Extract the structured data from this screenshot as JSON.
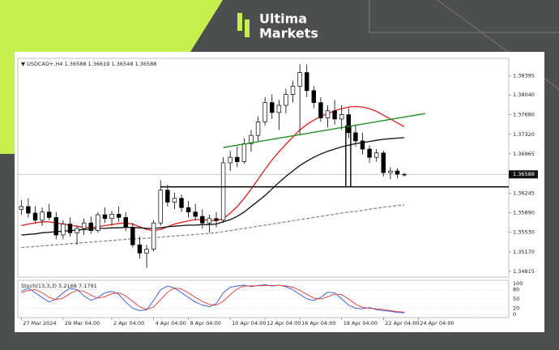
{
  "brand": {
    "line1": "Ultima",
    "line2": "Markets"
  },
  "chart_data": {
    "type": "candlestick",
    "symbol": "USDCAD+,H4",
    "header_ohlc": [
      1.36588,
      1.36619,
      1.36548,
      1.36588
    ],
    "open": [
      1.3595,
      1.36,
      1.3588,
      1.3575,
      1.359,
      1.358,
      1.3548,
      1.3568,
      1.3552,
      1.356,
      1.357,
      1.3556,
      1.3585,
      1.3578,
      1.3586,
      1.358,
      1.3562,
      1.353,
      1.3515,
      1.3522,
      1.357,
      1.363,
      1.3608,
      1.3615,
      1.3598,
      1.359,
      1.3582,
      1.357,
      1.3578,
      1.3575,
      1.368,
      1.369,
      1.3682,
      1.3715,
      1.373,
      1.3755,
      1.379,
      1.3772,
      1.3785,
      1.3805,
      1.382,
      1.3845,
      1.3812,
      1.379,
      1.3762,
      1.3775,
      1.376,
      1.3768,
      1.3735,
      1.372,
      1.3705,
      1.369,
      1.3698,
      1.3662,
      1.3665,
      1.36588
    ],
    "high": [
      1.3612,
      1.3615,
      1.36,
      1.3598,
      1.3605,
      1.359,
      1.3575,
      1.358,
      1.3565,
      1.3578,
      1.3582,
      1.359,
      1.3598,
      1.3592,
      1.36,
      1.359,
      1.357,
      1.3545,
      1.353,
      1.3575,
      1.3648,
      1.364,
      1.3625,
      1.3622,
      1.361,
      1.3605,
      1.3595,
      1.3585,
      1.359,
      1.369,
      1.3702,
      1.371,
      1.3725,
      1.374,
      1.3765,
      1.38,
      1.3805,
      1.3795,
      1.3815,
      1.383,
      1.386,
      1.386,
      1.382,
      1.38,
      1.3785,
      1.3795,
      1.3785,
      1.378,
      1.375,
      1.3735,
      1.3712,
      1.3705,
      1.3702,
      1.3672,
      1.367,
      1.36619
    ],
    "low": [
      1.3585,
      1.358,
      1.357,
      1.3565,
      1.3575,
      1.354,
      1.354,
      1.3545,
      1.353,
      1.3548,
      1.355,
      1.3552,
      1.357,
      1.3565,
      1.3572,
      1.3555,
      1.3525,
      1.3505,
      1.3488,
      1.3518,
      1.3565,
      1.36,
      1.3595,
      1.359,
      1.358,
      1.3575,
      1.356,
      1.3552,
      1.3562,
      1.357,
      1.3665,
      1.3672,
      1.3678,
      1.37,
      1.372,
      1.3748,
      1.376,
      1.374,
      1.377,
      1.379,
      1.373,
      1.38,
      1.378,
      1.3755,
      1.3745,
      1.375,
      1.374,
      1.3725,
      1.371,
      1.3695,
      1.368,
      1.3682,
      1.3655,
      1.365,
      1.3652,
      1.36548
    ],
    "close": [
      1.36,
      1.3588,
      1.3575,
      1.359,
      1.358,
      1.3548,
      1.3568,
      1.3552,
      1.356,
      1.357,
      1.3556,
      1.3585,
      1.3578,
      1.3586,
      1.358,
      1.3562,
      1.353,
      1.3515,
      1.3522,
      1.357,
      1.363,
      1.3608,
      1.3615,
      1.3598,
      1.359,
      1.3582,
      1.357,
      1.3578,
      1.3575,
      1.368,
      1.369,
      1.3682,
      1.3715,
      1.373,
      1.3755,
      1.379,
      1.3772,
      1.3785,
      1.3805,
      1.382,
      1.3845,
      1.3812,
      1.379,
      1.3762,
      1.3775,
      1.376,
      1.3768,
      1.3735,
      1.372,
      1.3705,
      1.369,
      1.3698,
      1.3662,
      1.3665,
      1.3659,
      1.36588
    ],
    "overlays": [
      {
        "color": "#e02020",
        "dash": false,
        "values": [
          1.3565,
          1.3568,
          1.357,
          1.3572,
          1.3572,
          1.357,
          1.3568,
          1.3566,
          1.3564,
          1.3562,
          1.3562,
          1.3563,
          1.3565,
          1.3567,
          1.3569,
          1.357,
          1.3568,
          1.3563,
          1.3558,
          1.3556,
          1.3558,
          1.3563,
          1.3568,
          1.3571,
          1.3574,
          1.3576,
          1.3576,
          1.3575,
          1.3574,
          1.3578,
          1.3588,
          1.36,
          1.3615,
          1.3632,
          1.365,
          1.3668,
          1.3685,
          1.37,
          1.3714,
          1.3727,
          1.374,
          1.375,
          1.3758,
          1.3765,
          1.377,
          1.3775,
          1.3779,
          1.3782,
          1.3783,
          1.3782,
          1.3779,
          1.3774,
          1.3767,
          1.376,
          1.3753,
          1.3746
        ]
      },
      {
        "color": "#111111",
        "dash": false,
        "values": [
          1.3548,
          1.3549,
          1.355,
          1.3552,
          1.3553,
          1.3554,
          1.3555,
          1.3556,
          1.3557,
          1.3558,
          1.3559,
          1.356,
          1.356,
          1.3561,
          1.3561,
          1.3562,
          1.3562,
          1.3561,
          1.356,
          1.356,
          1.3561,
          1.3563,
          1.3564,
          1.3565,
          1.3566,
          1.3566,
          1.3567,
          1.3567,
          1.3568,
          1.3572,
          1.3576,
          1.3582,
          1.359,
          1.36,
          1.361,
          1.362,
          1.3632,
          1.3644,
          1.3655,
          1.3665,
          1.3675,
          1.3683,
          1.369,
          1.3696,
          1.3701,
          1.3705,
          1.3709,
          1.3712,
          1.3715,
          1.3717,
          1.3719,
          1.3721,
          1.3723,
          1.3724,
          1.3725,
          1.3726
        ]
      },
      {
        "color": "#8a8a8a",
        "dash": true,
        "values": [
          1.3525,
          1.3526,
          1.3527,
          1.3528,
          1.3529,
          1.353,
          1.3531,
          1.3532,
          1.3533,
          1.3534,
          1.3535,
          1.3536,
          1.3537,
          1.3538,
          1.3539,
          1.354,
          1.3541,
          1.3541,
          1.3542,
          1.3543,
          1.3544,
          1.3545,
          1.3546,
          1.3547,
          1.3548,
          1.3549,
          1.355,
          1.3551,
          1.3552,
          1.3554,
          1.3556,
          1.3558,
          1.356,
          1.3562,
          1.3564,
          1.3566,
          1.3568,
          1.357,
          1.3572,
          1.3574,
          1.3576,
          1.3578,
          1.358,
          1.3582,
          1.3584,
          1.3586,
          1.3588,
          1.359,
          1.3591,
          1.3593,
          1.3595,
          1.3597,
          1.3599,
          1.36,
          1.3602,
          1.3603
        ]
      }
    ],
    "lines": [
      {
        "color": "#1f8f1f",
        "x": [
          29,
          58
        ],
        "y": [
          1.3708,
          1.377
        ]
      },
      {
        "color": "#000000",
        "x": [
          20,
          70
        ],
        "y": [
          1.3636,
          1.3636
        ]
      },
      {
        "color": "#000000",
        "x": [
          46.6,
          46.6
        ],
        "y": [
          1.3748,
          1.3636
        ]
      },
      {
        "color": "#000000",
        "x": [
          47.3,
          47.3
        ],
        "y": [
          1.3748,
          1.3636
        ]
      }
    ],
    "last_price": 1.36588,
    "xlim": [
      -0.5,
      70
    ],
    "ylim": [
      1.3471,
      1.3871
    ],
    "xticks": [
      {
        "value": 0,
        "label": "27 Mar 2024"
      },
      {
        "value": 6,
        "label": "29 Mar 04:00"
      },
      {
        "value": 13,
        "label": "2 Apr 04:00"
      },
      {
        "value": 19,
        "label": "4 Apr 04:00"
      },
      {
        "value": 24,
        "label": "8 Apr 04:00"
      },
      {
        "value": 30,
        "label": "10 Apr 04:00"
      },
      {
        "value": 35,
        "label": "12 Apr 04:00"
      },
      {
        "value": 40,
        "label": "16 Apr 04:00"
      },
      {
        "value": 46,
        "label": "18 Apr 04:00"
      },
      {
        "value": 52,
        "label": "22 Apr 04:00"
      },
      {
        "value": 57,
        "label": "24 Apr 04:00"
      }
    ],
    "yticks": [
      1.38395,
      {
        "value": 1.3804,
        "label": "1.38040"
      },
      {
        "value": 1.3768,
        "label": "1.37680"
      },
      {
        "value": 1.3732,
        "label": "1.37320"
      },
      1.36965,
      1.36245,
      {
        "value": 1.3589,
        "label": "1.35890"
      },
      {
        "value": 1.3553,
        "label": "1.35530"
      },
      {
        "value": 1.3517,
        "label": "1.35170"
      },
      1.34815
    ],
    "grid": false,
    "stoch": {
      "label": "Stoch(13,3,3)",
      "k_value": 5.2168,
      "d_value": 7.1791,
      "ylim": [
        0,
        100
      ],
      "yticks": [
        100,
        80,
        50,
        20,
        0
      ],
      "k_color": "#3355dd",
      "d_color": "#e03a3a",
      "k": [
        75,
        85,
        70,
        55,
        40,
        50,
        70,
        85,
        80,
        60,
        45,
        55,
        70,
        75,
        65,
        40,
        20,
        12,
        15,
        45,
        80,
        92,
        85,
        70,
        55,
        40,
        30,
        25,
        35,
        70,
        88,
        92,
        95,
        90,
        94,
        96,
        92,
        95,
        90,
        80,
        65,
        50,
        45,
        55,
        72,
        70,
        50,
        30,
        20,
        18,
        22,
        15,
        12,
        10,
        6,
        5.2168
      ],
      "d": [
        70,
        78,
        80,
        70,
        55,
        48,
        53,
        68,
        78,
        75,
        62,
        53,
        57,
        67,
        70,
        60,
        42,
        24,
        16,
        24,
        47,
        72,
        86,
        82,
        70,
        55,
        42,
        32,
        30,
        43,
        64,
        83,
        92,
        92,
        93,
        93,
        94,
        94,
        92,
        88,
        78,
        65,
        53,
        50,
        57,
        66,
        64,
        50,
        33,
        23,
        20,
        18,
        16,
        12,
        9,
        7.1791
      ]
    }
  }
}
